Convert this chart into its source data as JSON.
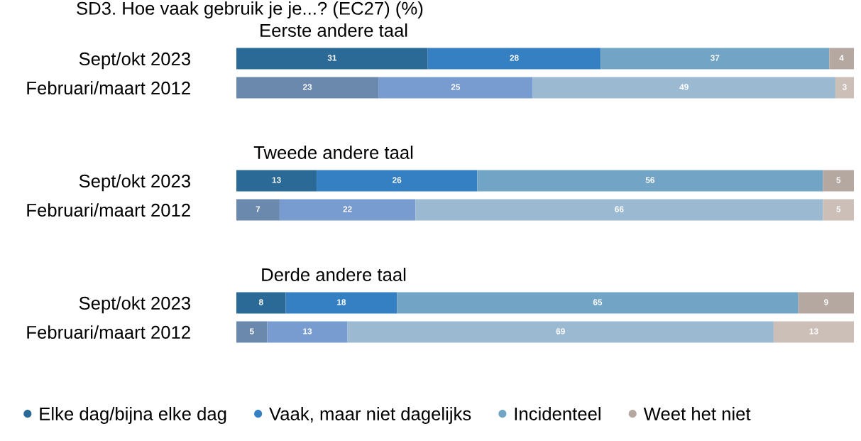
{
  "chart_data": [
    {
      "type": "bar",
      "orientation": "horizontal",
      "stacked": true,
      "data_labels": true,
      "tick_labels": "y",
      "xlim": [
        0,
        100
      ],
      "grid": false,
      "title": "SD3. Hoe vaak gebruik je je...? (EC27) (%)",
      "subtitle": "Eerste andere taal",
      "categories": [
        "Sept/okt 2023",
        "Februari/maart 2012"
      ],
      "series": [
        {
          "colors": [
            "#2b6a96",
            "#6b88ad"
          ],
          "values": [
            31,
            23
          ]
        },
        {
          "colors": [
            "#3580c3",
            "#789bd0"
          ],
          "values": [
            28,
            25
          ]
        },
        {
          "colors": [
            "#72a5c5",
            "#9bbad2"
          ],
          "values": [
            37,
            49
          ]
        },
        {
          "colors": [
            "#b5a8a0",
            "#cbbfb8"
          ],
          "values": [
            4,
            3
          ]
        }
      ]
    },
    {
      "type": "bar",
      "orientation": "horizontal",
      "stacked": true,
      "data_labels": true,
      "tick_labels": "y",
      "xlim": [
        0,
        100
      ],
      "grid": false,
      "title": "Tweede andere taal",
      "categories": [
        "Sept/okt 2023",
        "Februari/maart 2012"
      ],
      "series": [
        {
          "colors": [
            "#2b6a96",
            "#6b88ad"
          ],
          "values": [
            13,
            7
          ]
        },
        {
          "colors": [
            "#3580c3",
            "#789bd0"
          ],
          "values": [
            26,
            22
          ]
        },
        {
          "colors": [
            "#72a5c5",
            "#9bbad2"
          ],
          "values": [
            56,
            66
          ]
        },
        {
          "colors": [
            "#b5a8a0",
            "#cbbfb8"
          ],
          "values": [
            5,
            5
          ]
        }
      ]
    },
    {
      "type": "bar",
      "orientation": "horizontal",
      "stacked": true,
      "data_labels": true,
      "tick_labels": "y",
      "xlim": [
        0,
        100
      ],
      "grid": false,
      "legend": "bottom",
      "title": "Derde andere taal",
      "categories": [
        "Sept/okt 2023",
        "Februari/maart 2012"
      ],
      "series": [
        {
          "name": "Elke dag/bijna elke dag",
          "color": "#2b6a96",
          "colors": [
            "#2b6a96",
            "#6b88ad"
          ],
          "values": [
            8,
            5
          ]
        },
        {
          "name": "Vaak, maar niet dagelijks",
          "color": "#3580c3",
          "colors": [
            "#3580c3",
            "#789bd0"
          ],
          "values": [
            18,
            13
          ]
        },
        {
          "name": "Incidenteel",
          "color": "#72a5c5",
          "colors": [
            "#72a5c5",
            "#9bbad2"
          ],
          "values": [
            65,
            69
          ]
        },
        {
          "name": "Weet het niet",
          "color": "#b5a8a0",
          "colors": [
            "#b5a8a0",
            "#cbbfb8"
          ],
          "values": [
            9,
            13
          ]
        }
      ]
    }
  ]
}
